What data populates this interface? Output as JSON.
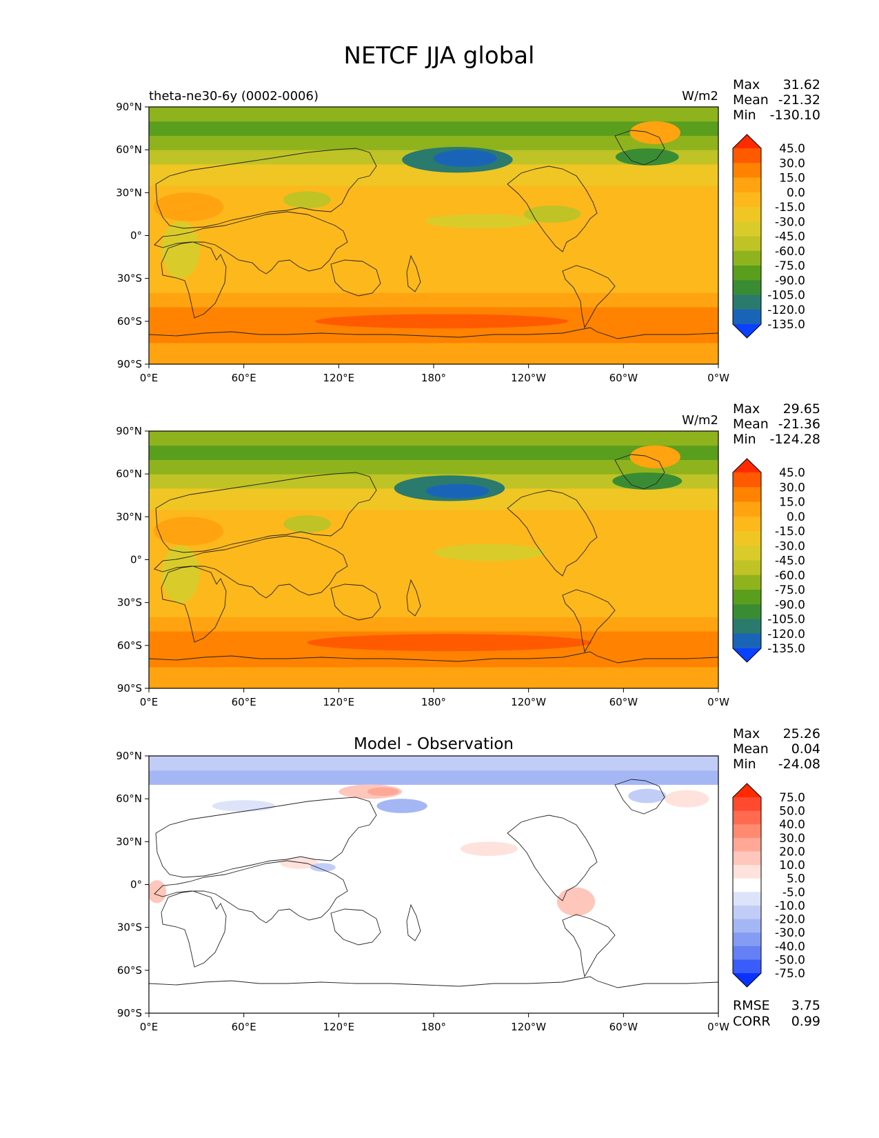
{
  "figure_title": "NETCF JJA global",
  "chart_data": [
    {
      "type": "heatmap",
      "panel": "test-model",
      "title": "",
      "left_title": "theta-ne30-6y (0002-0006)",
      "units": "W/m2",
      "xlabel": "",
      "ylabel": "",
      "xlim": [
        0,
        360
      ],
      "ylim": [
        -90,
        90
      ],
      "xticks": [
        "0°E",
        "60°E",
        "120°E",
        "180°",
        "120°W",
        "60°W",
        "0°W"
      ],
      "yticks": [
        "90°N",
        "60°N",
        "30°N",
        "0°",
        "30°S",
        "60°S",
        "90°S"
      ],
      "stats": {
        "max_label": "Max",
        "max": "31.62",
        "mean_label": "Mean",
        "mean": "-21.32",
        "min_label": "Min",
        "min": "-130.10"
      },
      "colorbar": {
        "levels": [
          "45.0",
          "30.0",
          "15.0",
          "0.0",
          "-15.0",
          "-30.0",
          "-45.0",
          "-60.0",
          "-75.0",
          "-90.0",
          "-105.0",
          "-120.0",
          "-135.0"
        ],
        "colors": [
          "#ff2a00",
          "#ff5a00",
          "#ff8200",
          "#ffa310",
          "#fdb81c",
          "#efc624",
          "#d9cc2a",
          "#bfc326",
          "#8fb31c",
          "#5a9e1e",
          "#3a8c34",
          "#2a7a6e",
          "#1a64b8",
          "#0a40ff"
        ]
      },
      "field": {
        "description_levels_index": "0 = highest bin (red) ... 13 = lowest bin (blue)",
        "bands": [
          {
            "lat": [
              -90,
              -75
            ],
            "level": 3
          },
          {
            "lat": [
              -75,
              -65
            ],
            "level": 2
          },
          {
            "lat": [
              -65,
              -50
            ],
            "level": 2
          },
          {
            "lat": [
              -50,
              -40
            ],
            "level": 3
          },
          {
            "lat": [
              -40,
              -20
            ],
            "level": 4
          },
          {
            "lat": [
              -20,
              10
            ],
            "level": 4
          },
          {
            "lat": [
              10,
              35
            ],
            "level": 4
          },
          {
            "lat": [
              35,
              50
            ],
            "level": 5
          },
          {
            "lat": [
              50,
              60
            ],
            "level": 7
          },
          {
            "lat": [
              60,
              70
            ],
            "level": 8
          },
          {
            "lat": [
              70,
              80
            ],
            "level": 9
          },
          {
            "lat": [
              80,
              90
            ],
            "level": 8
          }
        ],
        "features": [
          {
            "lon": 195,
            "lat": 53,
            "rx": 35,
            "ry": 9,
            "level": 11
          },
          {
            "lon": 200,
            "lat": 54,
            "rx": 20,
            "ry": 6,
            "level": 12
          },
          {
            "lon": 315,
            "lat": 55,
            "rx": 20,
            "ry": 6,
            "level": 10
          },
          {
            "lon": 320,
            "lat": 72,
            "rx": 16,
            "ry": 8,
            "level": 3
          },
          {
            "lon": 25,
            "lat": 20,
            "rx": 22,
            "ry": 10,
            "level": 3
          },
          {
            "lon": 210,
            "lat": 10,
            "rx": 35,
            "ry": 5,
            "level": 6
          },
          {
            "lon": 100,
            "lat": 25,
            "rx": 15,
            "ry": 6,
            "level": 7
          },
          {
            "lon": 20,
            "lat": -10,
            "rx": 12,
            "ry": 20,
            "level": 6
          },
          {
            "lon": 255,
            "lat": 15,
            "rx": 18,
            "ry": 6,
            "level": 7
          },
          {
            "lon": 185,
            "lat": -60,
            "rx": 80,
            "ry": 5,
            "level": 1
          }
        ]
      }
    },
    {
      "type": "heatmap",
      "panel": "reference",
      "title": "",
      "left_title": "",
      "units": "W/m2",
      "xlabel": "",
      "ylabel": "",
      "xlim": [
        0,
        360
      ],
      "ylim": [
        -90,
        90
      ],
      "xticks": [
        "0°E",
        "60°E",
        "120°E",
        "180°",
        "120°W",
        "60°W",
        "0°W"
      ],
      "yticks": [
        "90°N",
        "60°N",
        "30°N",
        "0°",
        "30°S",
        "60°S",
        "90°S"
      ],
      "stats": {
        "max_label": "Max",
        "max": "29.65",
        "mean_label": "Mean",
        "mean": "-21.36",
        "min_label": "Min",
        "min": "-124.28"
      },
      "colorbar": {
        "levels": [
          "45.0",
          "30.0",
          "15.0",
          "0.0",
          "-15.0",
          "-30.0",
          "-45.0",
          "-60.0",
          "-75.0",
          "-90.0",
          "-105.0",
          "-120.0",
          "-135.0"
        ],
        "colors": [
          "#ff2a00",
          "#ff5a00",
          "#ff8200",
          "#ffa310",
          "#fdb81c",
          "#efc624",
          "#d9cc2a",
          "#bfc326",
          "#8fb31c",
          "#5a9e1e",
          "#3a8c34",
          "#2a7a6e",
          "#1a64b8",
          "#0a40ff"
        ]
      },
      "field": {
        "bands": [
          {
            "lat": [
              -90,
              -75
            ],
            "level": 3
          },
          {
            "lat": [
              -75,
              -65
            ],
            "level": 2
          },
          {
            "lat": [
              -65,
              -50
            ],
            "level": 2
          },
          {
            "lat": [
              -50,
              -40
            ],
            "level": 3
          },
          {
            "lat": [
              -40,
              -20
            ],
            "level": 4
          },
          {
            "lat": [
              -20,
              10
            ],
            "level": 4
          },
          {
            "lat": [
              10,
              35
            ],
            "level": 4
          },
          {
            "lat": [
              35,
              50
            ],
            "level": 5
          },
          {
            "lat": [
              50,
              60
            ],
            "level": 7
          },
          {
            "lat": [
              60,
              70
            ],
            "level": 8
          },
          {
            "lat": [
              70,
              80
            ],
            "level": 9
          },
          {
            "lat": [
              80,
              90
            ],
            "level": 8
          }
        ],
        "features": [
          {
            "lon": 190,
            "lat": 50,
            "rx": 35,
            "ry": 9,
            "level": 11
          },
          {
            "lon": 195,
            "lat": 48,
            "rx": 20,
            "ry": 5,
            "level": 12
          },
          {
            "lon": 315,
            "lat": 55,
            "rx": 22,
            "ry": 6,
            "level": 10
          },
          {
            "lon": 320,
            "lat": 72,
            "rx": 16,
            "ry": 8,
            "level": 3
          },
          {
            "lon": 25,
            "lat": 20,
            "rx": 22,
            "ry": 10,
            "level": 3
          },
          {
            "lon": 215,
            "lat": 5,
            "rx": 35,
            "ry": 6,
            "level": 6
          },
          {
            "lon": 100,
            "lat": 25,
            "rx": 15,
            "ry": 6,
            "level": 7
          },
          {
            "lon": 20,
            "lat": -10,
            "rx": 12,
            "ry": 20,
            "level": 6
          },
          {
            "lon": 190,
            "lat": -58,
            "rx": 90,
            "ry": 6,
            "level": 1
          }
        ]
      }
    },
    {
      "type": "heatmap",
      "panel": "difference",
      "title": "Model - Observation",
      "left_title": "",
      "units": "",
      "xlabel": "",
      "ylabel": "",
      "xlim": [
        0,
        360
      ],
      "ylim": [
        -90,
        90
      ],
      "xticks": [
        "0°E",
        "60°E",
        "120°E",
        "180°",
        "120°W",
        "60°W",
        "0°W"
      ],
      "yticks": [
        "90°N",
        "60°N",
        "30°N",
        "0°",
        "30°S",
        "60°S",
        "90°S"
      ],
      "stats": {
        "max_label": "Max",
        "max": "25.26",
        "mean_label": "Mean",
        "mean": "0.04",
        "min_label": "Min",
        "min": "-24.08"
      },
      "rmse_label": "RMSE",
      "rmse": "3.75",
      "corr_label": "CORR",
      "corr": "0.99",
      "colorbar": {
        "levels": [
          "75.0",
          "50.0",
          "40.0",
          "30.0",
          "20.0",
          "10.0",
          "5.0",
          "-5.0",
          "-10.0",
          "-20.0",
          "-30.0",
          "-40.0",
          "-50.0",
          "-75.0"
        ],
        "colors": [
          "#ff2a00",
          "#ff4a30",
          "#ff6a50",
          "#ff8a70",
          "#ffa898",
          "#ffc6bc",
          "#ffe2dc",
          "#ffffff",
          "#dde4fa",
          "#c2cdf7",
          "#a5b6f5",
          "#859cf3",
          "#6480f4",
          "#3a5cf8",
          "#0a32ff"
        ]
      },
      "field": {
        "bands": [
          {
            "lat": [
              -90,
              70
            ],
            "level": 7
          },
          {
            "lat": [
              70,
              80
            ],
            "level": 10
          },
          {
            "lat": [
              80,
              90
            ],
            "level": 9
          }
        ],
        "features": [
          {
            "lon": 140,
            "lat": 65,
            "rx": 20,
            "ry": 5,
            "level": 5
          },
          {
            "lon": 148,
            "lat": 65,
            "rx": 10,
            "ry": 3,
            "level": 4
          },
          {
            "lon": 160,
            "lat": 55,
            "rx": 16,
            "ry": 5,
            "level": 10
          },
          {
            "lon": 270,
            "lat": -12,
            "rx": 12,
            "ry": 10,
            "level": 5
          },
          {
            "lon": 5,
            "lat": -5,
            "rx": 6,
            "ry": 8,
            "level": 5
          },
          {
            "lon": 215,
            "lat": 25,
            "rx": 18,
            "ry": 5,
            "level": 6
          },
          {
            "lon": 95,
            "lat": 15,
            "rx": 12,
            "ry": 4,
            "level": 6
          },
          {
            "lon": 340,
            "lat": 60,
            "rx": 14,
            "ry": 6,
            "level": 6
          },
          {
            "lon": 60,
            "lat": 55,
            "rx": 20,
            "ry": 4,
            "level": 8
          },
          {
            "lon": 110,
            "lat": 12,
            "rx": 8,
            "ry": 3,
            "level": 9
          },
          {
            "lon": 315,
            "lat": 62,
            "rx": 12,
            "ry": 5,
            "level": 9
          }
        ]
      }
    }
  ]
}
